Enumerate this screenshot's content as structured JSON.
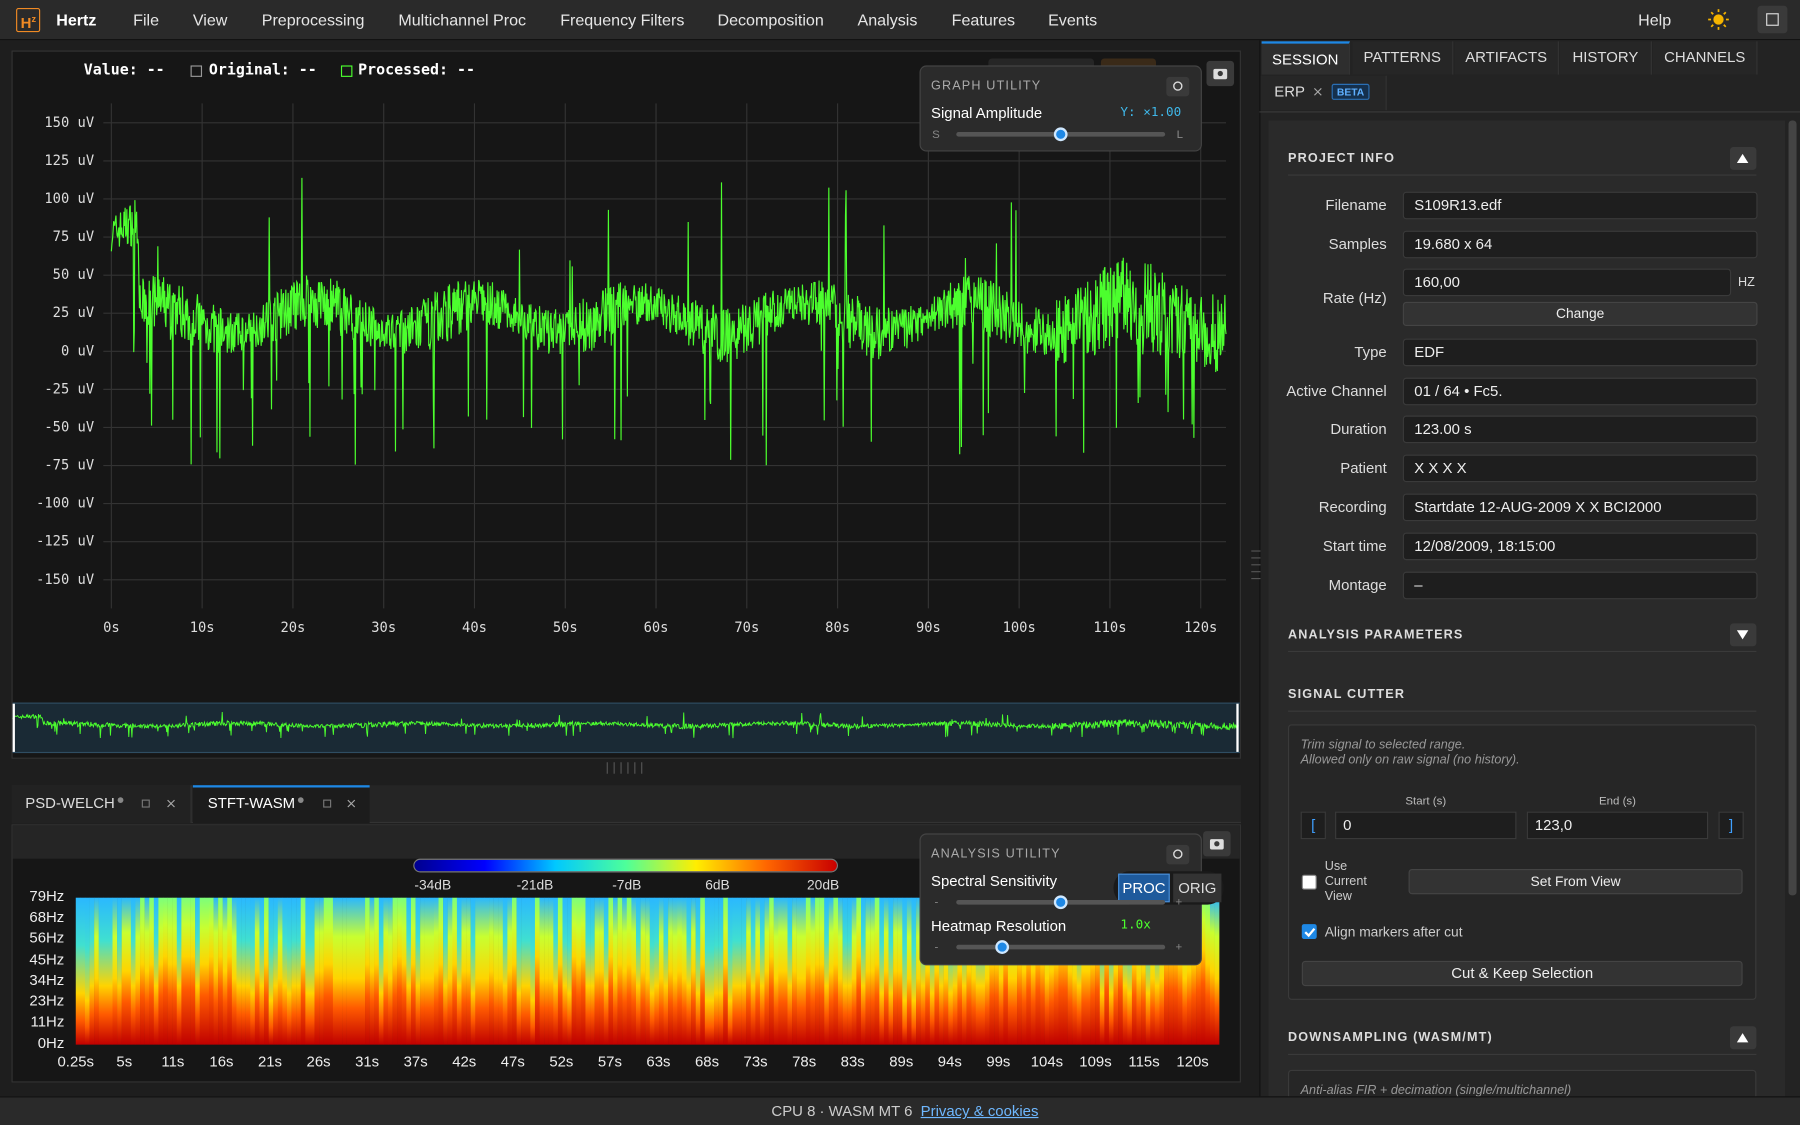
{
  "menu": {
    "logo": "H",
    "logo_sup": "z",
    "app": "Hertz",
    "items": [
      "File",
      "View",
      "Preprocessing",
      "Multichannel Proc",
      "Frequency Filters",
      "Decomposition",
      "Analysis",
      "Features",
      "Events"
    ],
    "help": "Help"
  },
  "signal_plot": {
    "legend": {
      "value": "Value: --",
      "original": "Original: --",
      "processed": "Processed: --"
    },
    "yticks": [
      "150 uV",
      "125 uV",
      "100 uV",
      "75 uV",
      "50 uV",
      "25 uV",
      "0 uV",
      "-25 uV",
      "-50 uV",
      "-75 uV",
      "-100 uV",
      "-125 uV",
      "-150 uV"
    ],
    "xticks": [
      "0s",
      "10s",
      "20s",
      "30s",
      "40s",
      "50s",
      "60s",
      "70s",
      "80s",
      "90s",
      "100s",
      "110s",
      "120s"
    ]
  },
  "graph_utility": {
    "title": "GRAPH UTILITY",
    "label": "Signal Amplitude",
    "readout": "Y: ×1.00",
    "min": "S",
    "max": "L"
  },
  "bottom_tabs": [
    "PSD-WELCH",
    "STFT-WASM"
  ],
  "spectrogram": {
    "colorbar": [
      "-34dB",
      "-21dB",
      "-7dB",
      "6dB",
      "20dB"
    ],
    "freq_ticks": [
      "79Hz",
      "68Hz",
      "56Hz",
      "45Hz",
      "34Hz",
      "23Hz",
      "11Hz",
      "0Hz"
    ],
    "time_ticks": [
      "0.25s",
      "5s",
      "11s",
      "16s",
      "21s",
      "26s",
      "31s",
      "37s",
      "42s",
      "47s",
      "52s",
      "57s",
      "63s",
      "68s",
      "73s",
      "78s",
      "83s",
      "89s",
      "94s",
      "99s",
      "104s",
      "109s",
      "115s",
      "120s"
    ]
  },
  "analysis_utility": {
    "title": "ANALYSIS UTILITY",
    "sensitivity": "Spectral Sensitivity",
    "proc": "PROC",
    "orig": "ORIG",
    "resolution": "Heatmap Resolution",
    "resolution_value": "1.0x",
    "min": "-",
    "max": "+"
  },
  "sidebar": {
    "tabs": [
      "SESSION",
      "PATTERNS",
      "ARTIFACTS",
      "HISTORY",
      "CHANNELS"
    ],
    "erp": "ERP",
    "beta": "BETA",
    "project_info": {
      "title": "PROJECT INFO",
      "fields": [
        {
          "label": "Filename",
          "value": "S109R13.edf"
        },
        {
          "label": "Samples",
          "value": "19.680 x 64"
        },
        {
          "label": "Rate (Hz)",
          "value": "160,00"
        },
        {
          "label": "Type",
          "value": "EDF"
        },
        {
          "label": "Active Channel",
          "value": "01 / 64 • Fc5."
        },
        {
          "label": "Duration",
          "value": "123.00 s"
        },
        {
          "label": "Patient",
          "value": "X X X X"
        },
        {
          "label": "Recording",
          "value": "Startdate 12-AUG-2009 X X BCI2000"
        },
        {
          "label": "Start time",
          "value": "12/08/2009, 18:15:00"
        },
        {
          "label": "Montage",
          "value": "–"
        }
      ],
      "rate_unit": "HZ",
      "change": "Change"
    },
    "analysis_parameters": "ANALYSIS PARAMETERS",
    "signal_cutter": {
      "title": "SIGNAL CUTTER",
      "note": [
        "Trim signal to selected range.",
        "Allowed only on raw signal (no history)."
      ],
      "start_label": "Start (s)",
      "end_label": "End (s)",
      "open_bracket": "[",
      "close_bracket": "]",
      "start": "0",
      "end": "123,0",
      "use_current_view": "Use Current View",
      "set_from_view": "Set From View",
      "align": "Align markers after cut",
      "cut": "Cut & Keep Selection"
    },
    "downsampling": {
      "title": "DOWNSAMPLING (WASM/MT)",
      "note": "Anti-alias FIR + decimation (single/multichannel)"
    }
  },
  "footer": {
    "status": "CPU 8 · WASM MT 6",
    "privacy": "Privacy & cookies"
  }
}
